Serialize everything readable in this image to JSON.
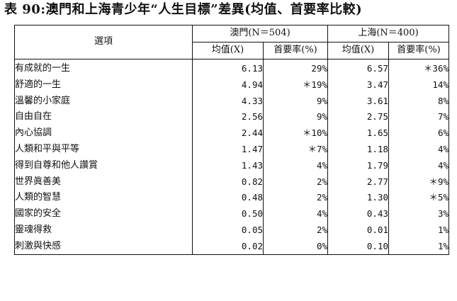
{
  "title": "表 90:澳門和上海青少年“人生目標”差異(均值、首要率比較)",
  "header": {
    "option_col": "選項",
    "groups": [
      {
        "label": "澳門(N＝504)"
      },
      {
        "label": "上海(N＝400)"
      }
    ],
    "subheaders": [
      "均值(X)",
      "首要率(%)",
      "均值(X)",
      "首要率(%)"
    ]
  },
  "rows": [
    {
      "option": "有成就的一生",
      "macau_mean": "6.13",
      "macau_rate": "29%",
      "shanghai_mean": "6.57",
      "shanghai_rate": "＊36%"
    },
    {
      "option": "舒適的一生",
      "macau_mean": "4.94",
      "macau_rate": "＊19%",
      "shanghai_mean": "3.47",
      "shanghai_rate": "14%"
    },
    {
      "option": "溫馨的小家庭",
      "macau_mean": "4.33",
      "macau_rate": "9%",
      "shanghai_mean": "3.61",
      "shanghai_rate": "8%"
    },
    {
      "option": "自由自在",
      "macau_mean": "2.56",
      "macau_rate": "9%",
      "shanghai_mean": "2.75",
      "shanghai_rate": "7%"
    },
    {
      "option": "內心協調",
      "macau_mean": "2.44",
      "macau_rate": "＊10%",
      "shanghai_mean": "1.65",
      "shanghai_rate": "6%"
    },
    {
      "option": "人類和平與平等",
      "macau_mean": "1.47",
      "macau_rate": "＊7%",
      "shanghai_mean": "1.18",
      "shanghai_rate": "4%"
    },
    {
      "option": "得到自尊和他人讚賞",
      "macau_mean": "1.43",
      "macau_rate": "4%",
      "shanghai_mean": "1.79",
      "shanghai_rate": "4%"
    },
    {
      "option": "世界眞善美",
      "macau_mean": "0.82",
      "macau_rate": "2%",
      "shanghai_mean": "2.77",
      "shanghai_rate": "＊9%"
    },
    {
      "option": "人類的智慧",
      "macau_mean": "0.48",
      "macau_rate": "2%",
      "shanghai_mean": "1.30",
      "shanghai_rate": "＊5%"
    },
    {
      "option": "國家的安全",
      "macau_mean": "0.50",
      "macau_rate": "4%",
      "shanghai_mean": "0.43",
      "shanghai_rate": "3%"
    },
    {
      "option": "靈魂得救",
      "macau_mean": "0.05",
      "macau_rate": "2%",
      "shanghai_mean": "0.01",
      "shanghai_rate": "1%"
    },
    {
      "option": "刺激與快感",
      "macau_mean": "0.02",
      "macau_rate": "0%",
      "shanghai_mean": "0.10",
      "shanghai_rate": "1%"
    }
  ]
}
